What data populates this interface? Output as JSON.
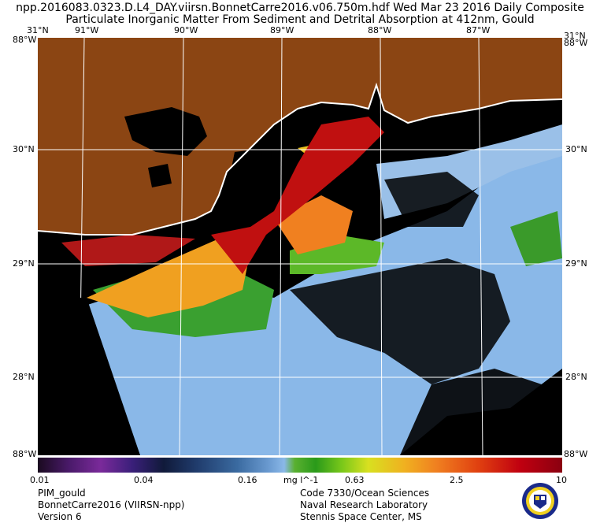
{
  "header": {
    "line1": "npp.2016083.0323.D.L4_DAY.viirsn.BonnetCarre2016.v06.750m.hdf   Wed Mar 23 2016 Daily Composite",
    "line2": "Particulate Inorganic Matter From Sediment and Detrital Absorption at 412nm, Gould"
  },
  "map": {
    "lon_labels": [
      "91°W",
      "90°W",
      "89°W",
      "88°W",
      "87°W"
    ],
    "lat_labels": [
      "30°N",
      "29°N",
      "28°N"
    ],
    "corner_top_left": "31°N",
    "corner_top_right_lat": "31°N",
    "corner_lon_left": "88°W",
    "corner_lon_right": "88°W",
    "corner_bottom_left": "88°W",
    "corner_bottom_right": "88°W",
    "colors": {
      "land": "#8b4513",
      "no_data": "#000000",
      "low": "#8ab8e8",
      "mid": "#4cb040",
      "high": "#f0a020",
      "very_high": "#c01010",
      "grid": "#ffffff"
    }
  },
  "colorbar": {
    "ticks": [
      "0.01",
      "0.04",
      "0.16",
      "0.63",
      "2.5",
      "10"
    ],
    "units": "mg l^-1",
    "scale": "log"
  },
  "footer": {
    "left": [
      "PIM_gould",
      "BonnetCarre2016 (VIIRSN-npp)",
      "Version 6"
    ],
    "right": [
      "Code 7330/Ocean Sciences",
      "Naval Research Laboratory",
      "Stennis Space Center, MS"
    ]
  },
  "logo": {
    "icon": "nrl-seal-icon"
  }
}
